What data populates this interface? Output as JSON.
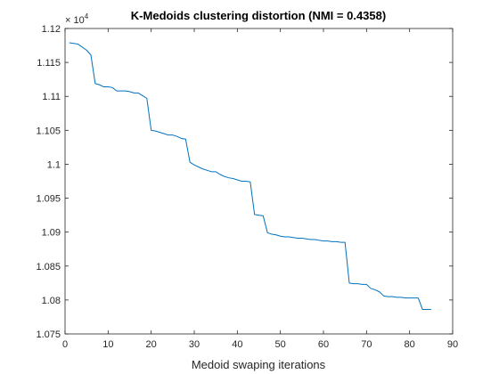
{
  "chart_data": {
    "type": "line",
    "title": "K-Medoids clustering distortion (NMI = 0.4358)",
    "xlabel": "Medoid swaping iterations",
    "ylabel": "",
    "exponent_base": "× 10",
    "exponent_power": "4",
    "xlim": [
      0,
      90
    ],
    "ylim": [
      1.075,
      1.12
    ],
    "xticks": [
      0,
      10,
      20,
      30,
      40,
      50,
      60,
      70,
      80,
      90
    ],
    "yticks": [
      1.075,
      1.08,
      1.085,
      1.09,
      1.095,
      1.1,
      1.105,
      1.11,
      1.115,
      1.12
    ],
    "ytick_labels": [
      "1.075",
      "1.08",
      "1.085",
      "1.09",
      "1.095",
      "1.1",
      "1.105",
      "1.11",
      "1.115",
      "1.12"
    ],
    "grid": false,
    "line_color": "#0072BD",
    "series": [
      {
        "x": [
          1,
          3,
          5,
          6,
          7,
          8,
          9,
          10,
          11,
          12,
          13,
          14,
          15,
          16,
          17,
          18,
          19,
          20,
          21,
          22,
          23,
          24,
          25,
          26,
          27,
          28,
          29,
          30,
          31,
          32,
          33,
          34,
          35,
          36,
          37,
          38,
          39,
          40,
          41,
          42,
          43,
          44,
          45,
          46,
          47,
          48,
          49,
          50,
          51,
          52,
          53,
          54,
          55,
          56,
          57,
          58,
          59,
          60,
          61,
          62,
          63,
          64,
          65,
          66,
          67,
          68,
          69,
          70,
          71,
          72,
          73,
          74,
          75,
          76,
          77,
          78,
          79,
          80,
          81,
          82,
          83,
          84,
          85
        ],
        "y": [
          1.1179,
          1.1177,
          1.1168,
          1.1161,
          1.1119,
          1.1117,
          1.1114,
          1.1114,
          1.1113,
          1.1108,
          1.1108,
          1.1108,
          1.1107,
          1.1105,
          1.1105,
          1.1101,
          1.1097,
          1.105,
          1.1049,
          1.1047,
          1.1045,
          1.1043,
          1.1043,
          1.1041,
          1.1038,
          1.1037,
          1.1003,
          1.0999,
          1.0996,
          1.0993,
          1.0991,
          1.0989,
          1.0989,
          1.0985,
          1.0982,
          1.098,
          1.0979,
          1.0977,
          1.0975,
          1.0975,
          1.0974,
          1.0926,
          1.0925,
          1.0924,
          1.0899,
          1.0897,
          1.0896,
          1.0894,
          1.0893,
          1.0893,
          1.0892,
          1.0891,
          1.0891,
          1.089,
          1.0889,
          1.0889,
          1.0888,
          1.0887,
          1.0887,
          1.0886,
          1.0886,
          1.0885,
          1.0885,
          1.0825,
          1.0824,
          1.0824,
          1.0823,
          1.0823,
          1.0817,
          1.0815,
          1.0812,
          1.0806,
          1.0805,
          1.0805,
          1.0804,
          1.0804,
          1.0803,
          1.0803,
          1.0803,
          1.0803,
          1.0786,
          1.0786,
          1.0786
        ]
      }
    ]
  }
}
